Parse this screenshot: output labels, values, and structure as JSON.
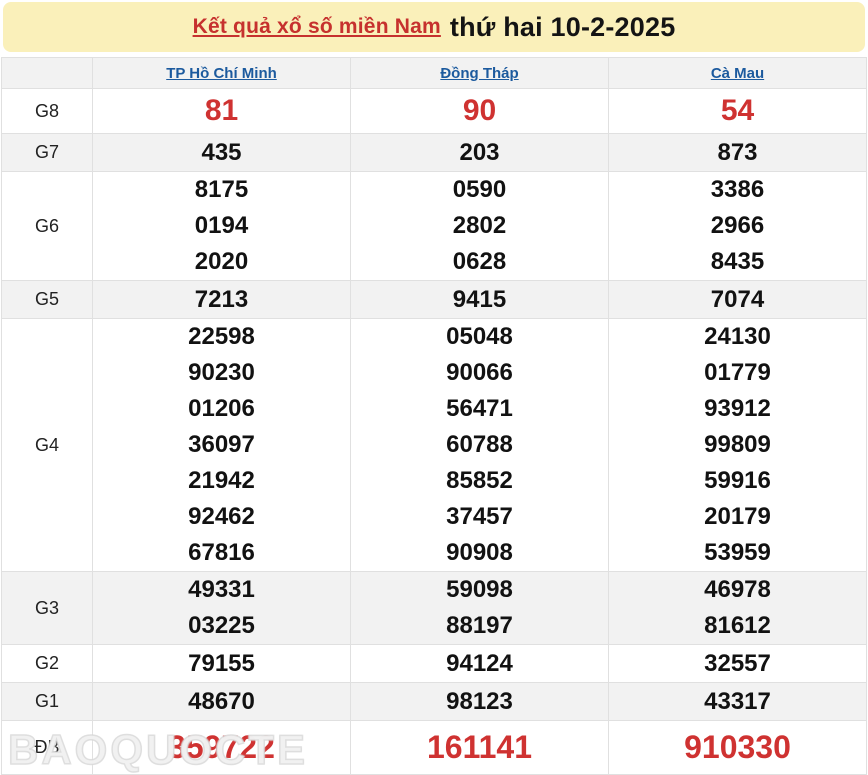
{
  "banner": {
    "title_link": "Kết quả xổ số miền Nam",
    "title_date": "thứ hai 10-2-2025"
  },
  "colors": {
    "banner_bg": "#faf0ba",
    "accent_red": "#cf3231",
    "link_blue": "#1c5a9e",
    "alt_row_gray": "#f2f2f2",
    "border": "#e0e0e0"
  },
  "table": {
    "columns": [
      "TP Hồ Chí Minh",
      "Đồng Tháp",
      "Cà Mau"
    ],
    "rows": [
      {
        "label": "G8",
        "cells": [
          [
            "81"
          ],
          [
            "90"
          ],
          [
            "54"
          ]
        ]
      },
      {
        "label": "G7",
        "cells": [
          [
            "435"
          ],
          [
            "203"
          ],
          [
            "873"
          ]
        ]
      },
      {
        "label": "G6",
        "cells": [
          [
            "8175",
            "0194",
            "2020"
          ],
          [
            "0590",
            "2802",
            "0628"
          ],
          [
            "3386",
            "2966",
            "8435"
          ]
        ]
      },
      {
        "label": "G5",
        "cells": [
          [
            "7213"
          ],
          [
            "9415"
          ],
          [
            "7074"
          ]
        ]
      },
      {
        "label": "G4",
        "cells": [
          [
            "22598",
            "90230",
            "01206",
            "36097",
            "21942",
            "92462",
            "67816"
          ],
          [
            "05048",
            "90066",
            "56471",
            "60788",
            "85852",
            "37457",
            "90908"
          ],
          [
            "24130",
            "01779",
            "93912",
            "99809",
            "59916",
            "20179",
            "53959"
          ]
        ]
      },
      {
        "label": "G3",
        "cells": [
          [
            "49331",
            "03225"
          ],
          [
            "59098",
            "88197"
          ],
          [
            "46978",
            "81612"
          ]
        ]
      },
      {
        "label": "G2",
        "cells": [
          [
            "79155"
          ],
          [
            "94124"
          ],
          [
            "32557"
          ]
        ]
      },
      {
        "label": "G1",
        "cells": [
          [
            "48670"
          ],
          [
            "98123"
          ],
          [
            "43317"
          ]
        ]
      },
      {
        "label": "ĐB",
        "cells": [
          [
            "359722"
          ],
          [
            "161141"
          ],
          [
            "910330"
          ]
        ]
      }
    ]
  },
  "watermark": "BAOQUOCTE"
}
